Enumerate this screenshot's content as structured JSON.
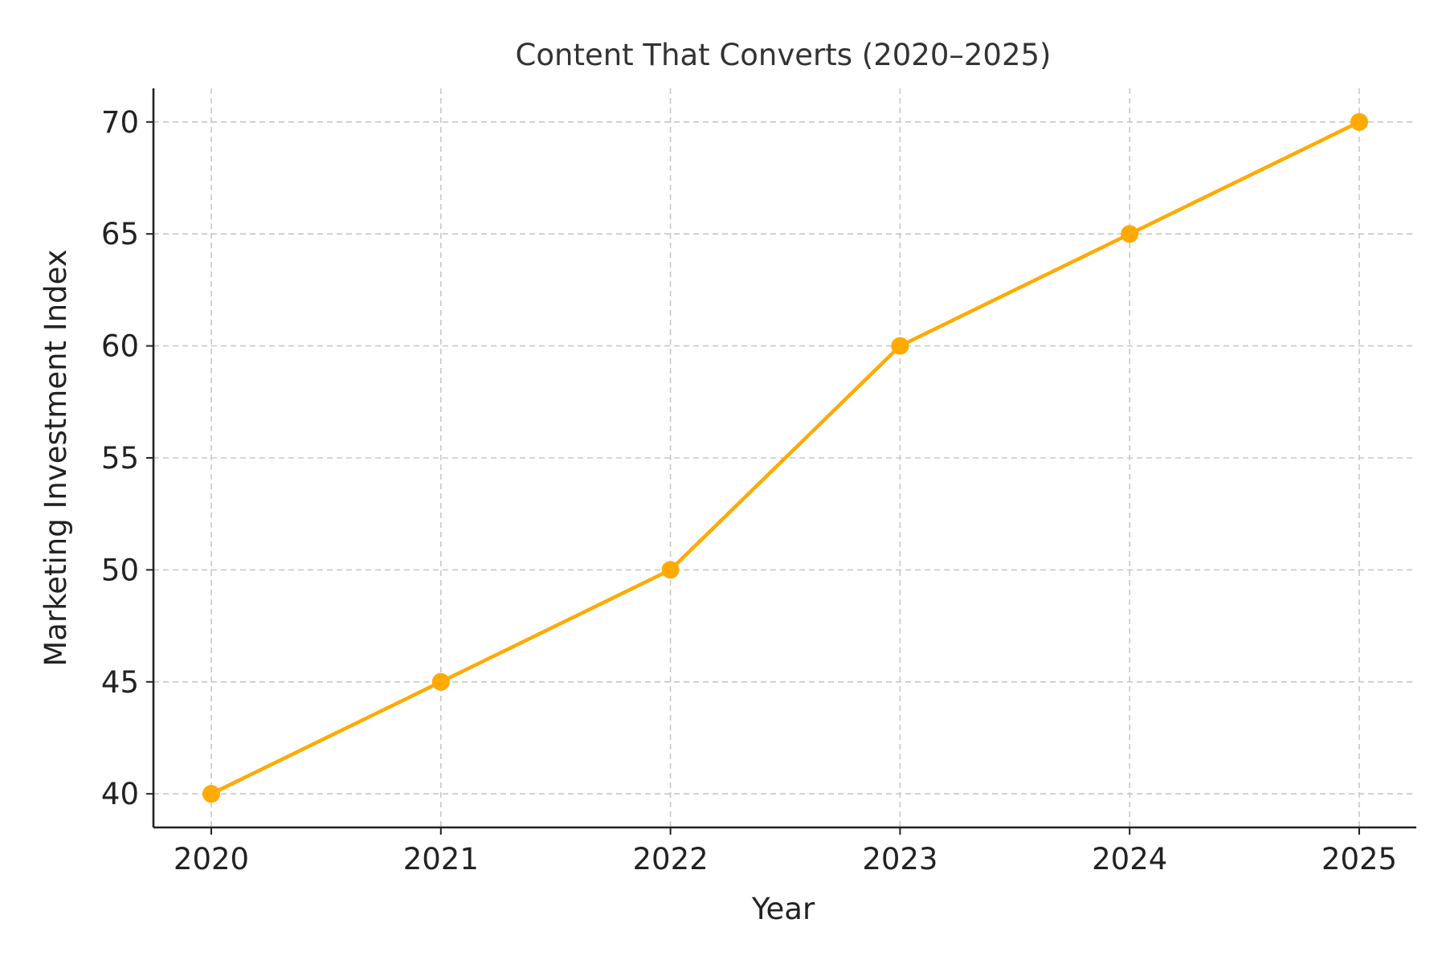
{
  "chart_data": {
    "type": "line",
    "title": "Content That Converts (2020–2025)",
    "xlabel": "Year",
    "ylabel": "Marketing Investment Index",
    "categories": [
      "2020",
      "2021",
      "2022",
      "2023",
      "2024",
      "2025"
    ],
    "series": [
      {
        "values": [
          40,
          45,
          50,
          60,
          65,
          70
        ]
      }
    ],
    "ylim": [
      38.5,
      71.5
    ],
    "yticks": [
      40,
      45,
      50,
      55,
      60,
      65,
      70
    ],
    "grid": true,
    "line_color": "#FFAA00",
    "grid_color": "#c8c8c8",
    "marker": "circle"
  }
}
